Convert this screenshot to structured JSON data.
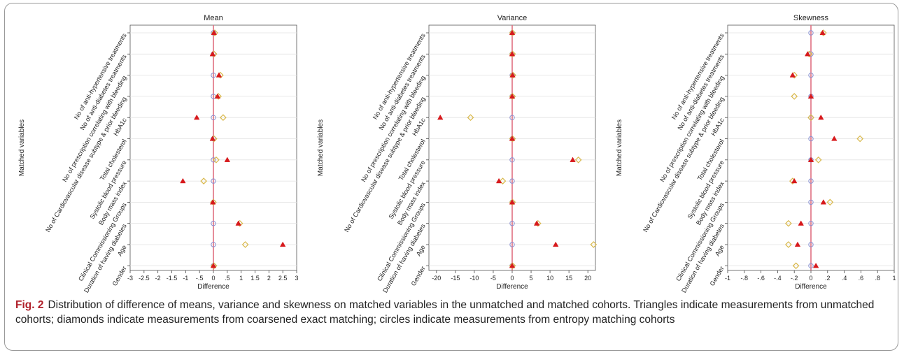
{
  "caption": {
    "label": "Fig. 2",
    "text": "Distribution of difference of means, variance and skewness on matched variables in the unmatched and matched cohorts. Triangles indicate measurements from unmatched cohorts; diamonds indicate measurements from coarsened exact matching; circles indicate measurements from entropy matching cohorts"
  },
  "colors": {
    "unmatched": "#d7191c",
    "cem": "#d9b84a",
    "entropy": "#8a8fd0",
    "zero_line": "#e07080",
    "grid": "#e2e2e2"
  },
  "chart_data": [
    {
      "type": "scatter",
      "title": "Mean",
      "xlabel": "Difference",
      "ylabel": "Matched variables",
      "xlim": [
        -3,
        3
      ],
      "x_ticks": [
        "-3",
        "-2.5",
        "-2",
        "-1.5",
        "-1",
        "-.5",
        "0",
        ".5",
        "1",
        "1.5",
        "2",
        "2.5",
        "3"
      ],
      "x_tick_values": [
        -3,
        -2.5,
        -2,
        -1.5,
        -1,
        -0.5,
        0,
        0.5,
        1,
        1.5,
        2,
        2.5,
        3
      ],
      "categories": [
        "No of anti-hypertensive treatments",
        "No of anti-diabetes treatments",
        "No of prescription correlating with bleeding",
        "No of Cardiovascular disease subtype & prior bleeding",
        "HbA1c",
        "Total cholesterol",
        "Systolic blood pressure",
        "Body mass index",
        "Clinical Commissioning Groups",
        "Duration of having diabetes",
        "Age",
        "Gender"
      ],
      "series": [
        {
          "marker": "triangle",
          "values": [
            0.02,
            -0.03,
            0.2,
            0.15,
            -0.6,
            -0.03,
            0.5,
            -1.1,
            -0.02,
            0.9,
            2.5,
            0.0
          ]
        },
        {
          "marker": "diamond",
          "values": [
            0.05,
            0.02,
            0.25,
            0.18,
            0.35,
            0.02,
            0.1,
            -0.35,
            0.0,
            0.95,
            1.15,
            0.02
          ]
        },
        {
          "marker": "circle",
          "values": [
            0,
            0,
            0,
            0,
            0,
            0,
            0,
            0,
            0,
            0,
            0,
            0
          ]
        }
      ]
    },
    {
      "type": "scatter",
      "title": "Variance",
      "xlabel": "Difference",
      "ylabel": "Matched variables",
      "xlim": [
        -22,
        22
      ],
      "x_ticks": [
        "-20",
        "-15",
        "-10",
        "-5",
        "0",
        "5",
        "10",
        "15",
        "20"
      ],
      "x_tick_values": [
        -20,
        -15,
        -10,
        -5,
        0,
        5,
        10,
        15,
        20
      ],
      "categories": [
        "No of anti-hypertensive treatments",
        "No of anti-diabetes treatments",
        "No of prescription correlating with bleeding",
        "No of Cardiovascular disease subtype & prior bleeding",
        "HbA1c",
        "Total cholesterol",
        "Systolic blood pressure",
        "Body mass index",
        "Clinical Commissioning Groups",
        "Duration of having diabetes",
        "Age",
        "Gender"
      ],
      "series": [
        {
          "marker": "triangle",
          "values": [
            0.0,
            0.0,
            0.1,
            0.0,
            -19.0,
            0.0,
            16.0,
            -3.5,
            0.0,
            6.5,
            11.5,
            0.0
          ]
        },
        {
          "marker": "diamond",
          "values": [
            0.1,
            0.1,
            0.2,
            0.1,
            -11.0,
            0.1,
            17.5,
            -2.5,
            0.1,
            6.8,
            21.5,
            0.1
          ]
        },
        {
          "marker": "circle",
          "values": [
            0,
            0,
            0,
            0,
            0,
            0,
            0,
            0,
            0,
            0,
            0,
            0
          ]
        }
      ]
    },
    {
      "type": "scatter",
      "title": "Skewness",
      "xlabel": "Difference",
      "ylabel": "Matched variables",
      "xlim": [
        -1,
        1
      ],
      "x_ticks": [
        "-1",
        "-.8",
        "-.6",
        "-.4",
        "-.2",
        "0",
        ".2",
        ".4",
        ".6",
        ".8",
        "1"
      ],
      "x_tick_values": [
        -1,
        -0.8,
        -0.6,
        -0.4,
        -0.2,
        0,
        0.2,
        0.4,
        0.6,
        0.8,
        1
      ],
      "categories": [
        "No of anti-hypertensive treatments",
        "No of anti-diabetes treatments",
        "No of prescription correlating with bleeding",
        "No of Cardiovascular disease subtype & prior bleeding",
        "HbA1c",
        "Total cholesterol",
        "Systolic blood pressure",
        "Body mass index",
        "Clinical Commissioning Groups",
        "Duration of having diabetes",
        "Age",
        "Gender"
      ],
      "series": [
        {
          "marker": "triangle",
          "values": [
            0.14,
            -0.04,
            -0.22,
            0.0,
            0.12,
            0.28,
            0.0,
            -0.2,
            0.15,
            -0.12,
            -0.16,
            0.06
          ]
        },
        {
          "marker": "diamond",
          "values": [
            0.15,
            -0.02,
            -0.2,
            -0.2,
            0.0,
            0.59,
            0.09,
            -0.22,
            0.23,
            -0.27,
            -0.27,
            -0.18
          ]
        },
        {
          "marker": "circle",
          "values": [
            0,
            0,
            0,
            0,
            0,
            0,
            0,
            0,
            0,
            0,
            0,
            0
          ]
        }
      ]
    }
  ]
}
